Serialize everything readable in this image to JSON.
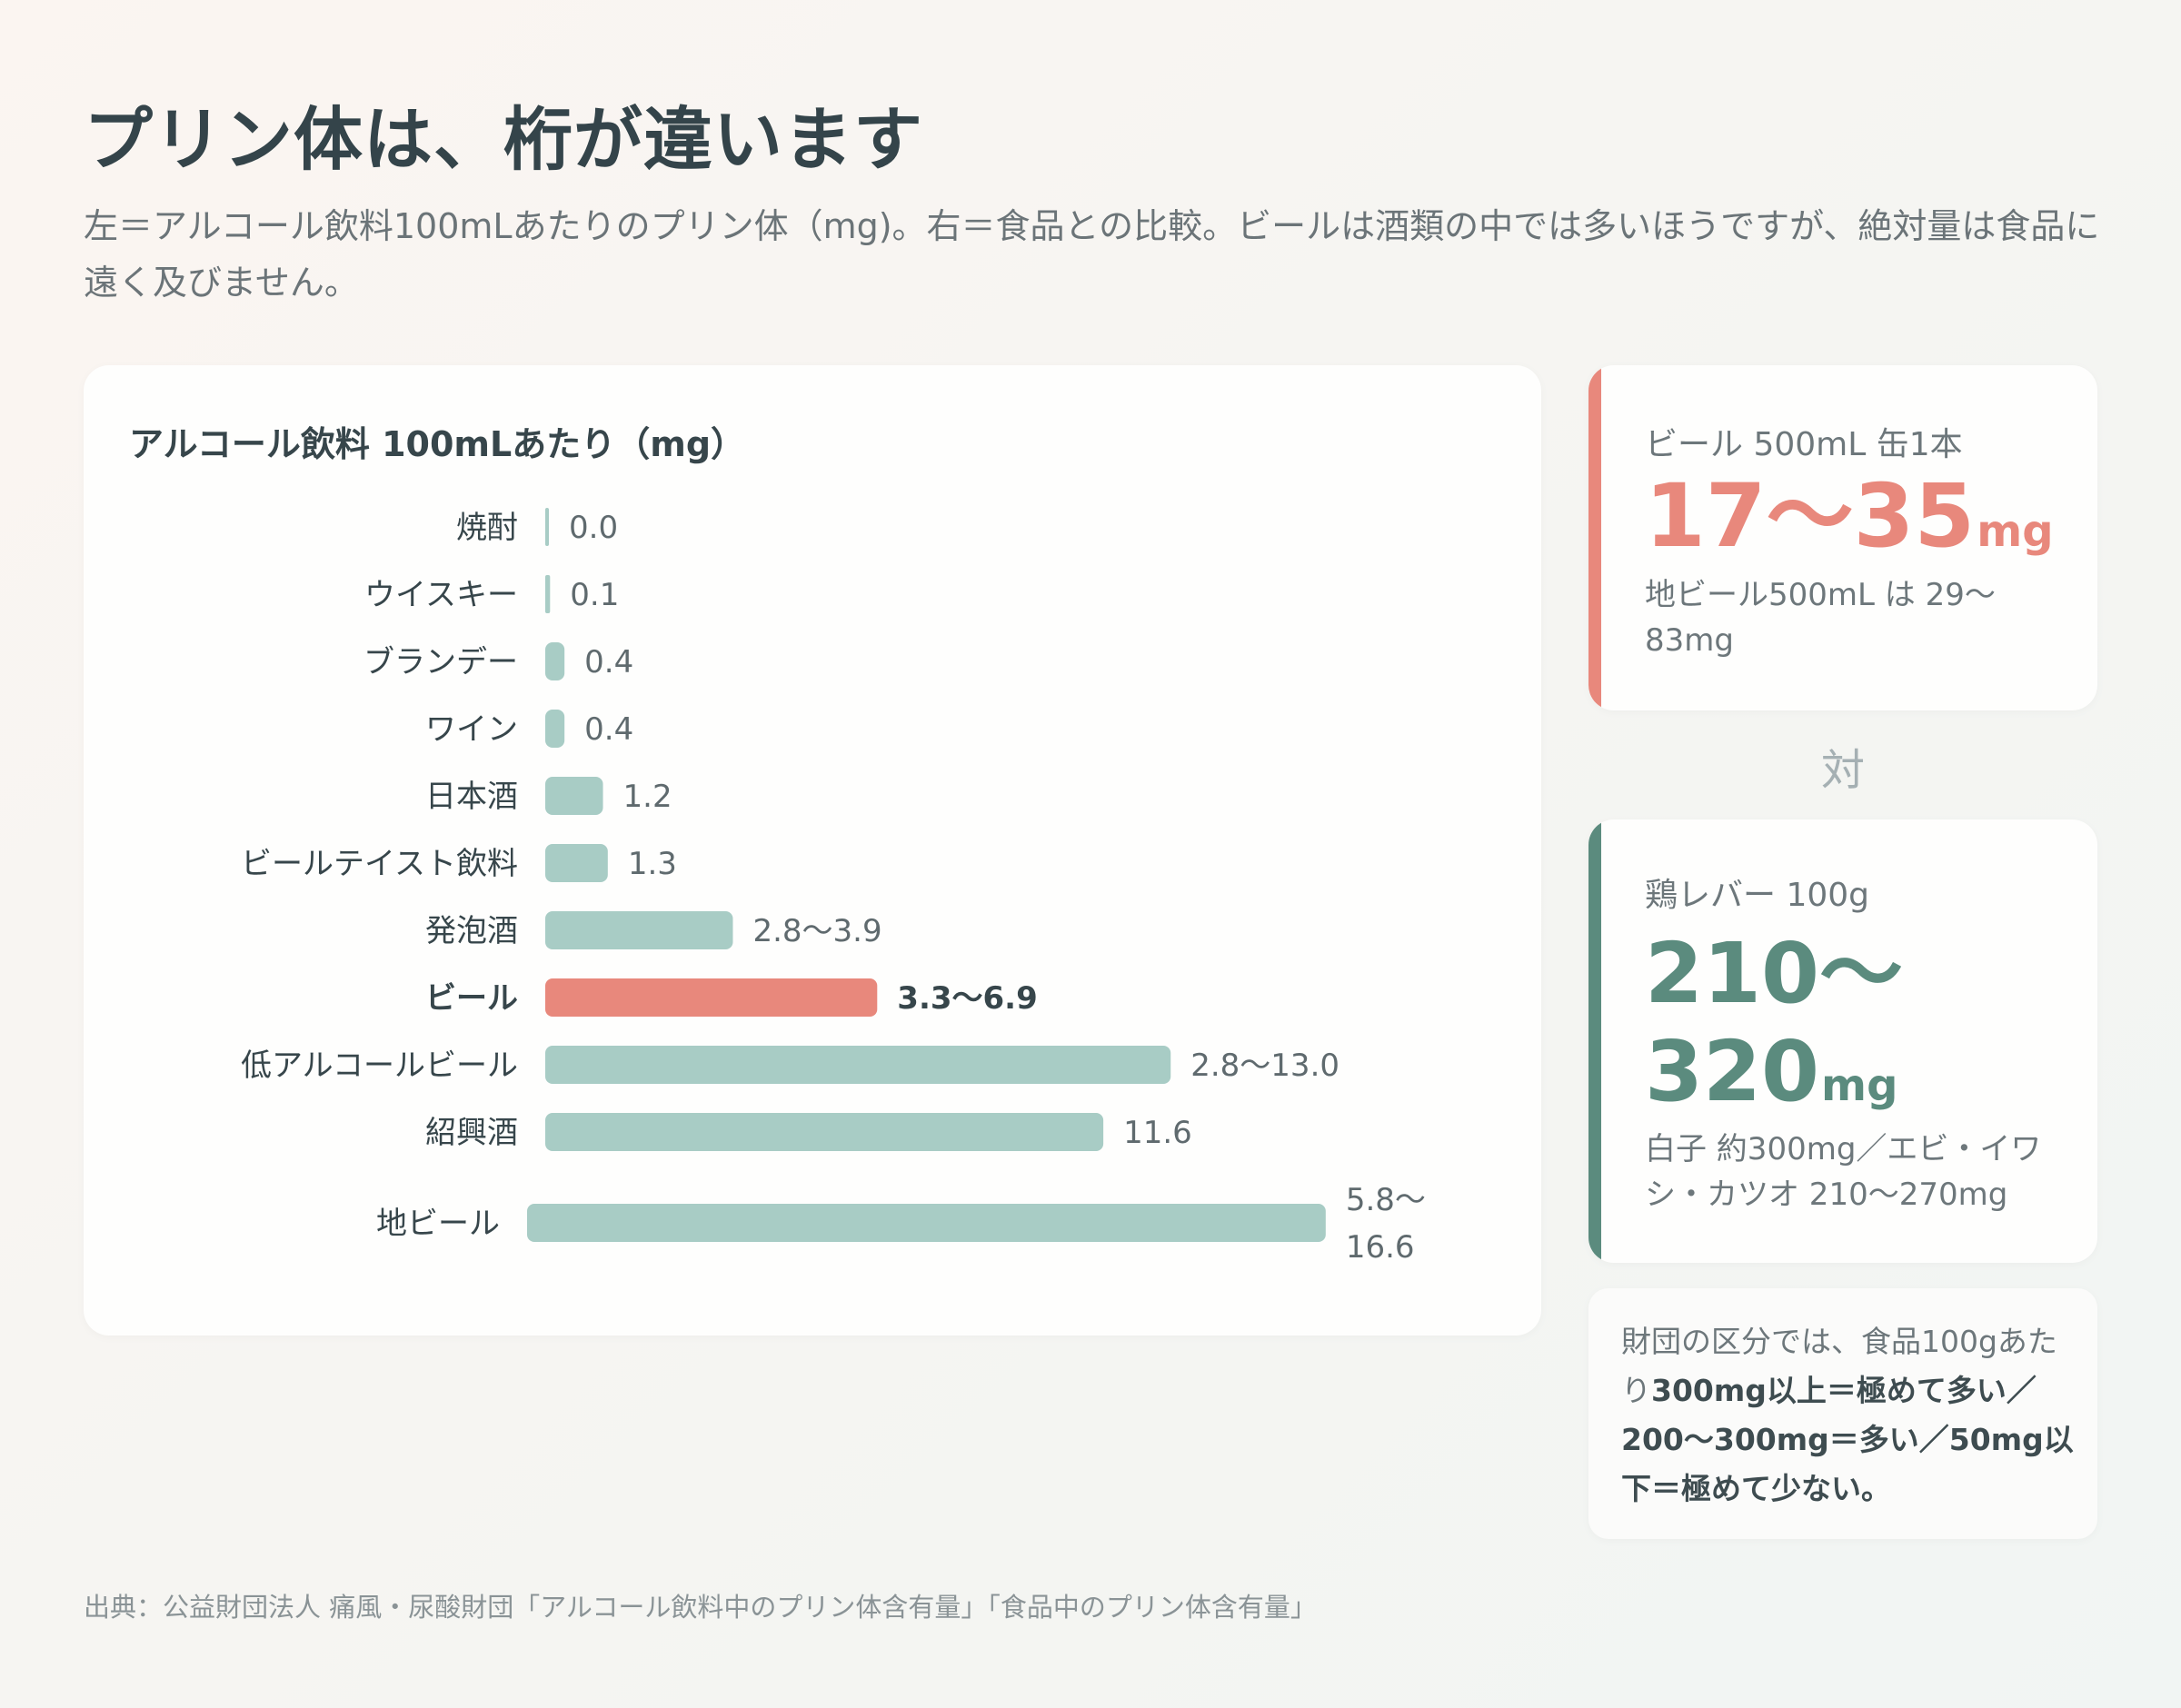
{
  "header": {
    "title": "プリン体は、桁が違います",
    "subtitle": "左＝アルコール飲料100mLあたりのプリン体（mg)。右＝食品との比較。ビールは酒類の中では多いほうですが、絶対量は食品に遠く及びません。"
  },
  "chart_data": {
    "type": "bar",
    "orientation": "horizontal",
    "title": "アルコール飲料 100mLあたり（mg）",
    "xlim": [
      0,
      17
    ],
    "grid": false,
    "categories": [
      "焼酎",
      "ウイスキー",
      "ブランデー",
      "ワイン",
      "日本酒",
      "ビールテイスト飲料",
      "発泡酒",
      "ビール",
      "低アルコールビール",
      "紹興酒",
      "地ビール"
    ],
    "values": [
      0.0,
      0.1,
      0.4,
      0.4,
      1.2,
      1.3,
      3.9,
      6.9,
      13.0,
      11.6,
      16.6
    ],
    "ranges": [
      null,
      null,
      null,
      null,
      null,
      null,
      [
        2.8,
        3.9
      ],
      [
        3.3,
        6.9
      ],
      [
        2.8,
        13.0
      ],
      null,
      [
        5.8,
        16.6
      ]
    ],
    "value_labels": [
      "0.0",
      "0.1",
      "0.4",
      "0.4",
      "1.2",
      "1.3",
      "2.8〜3.9",
      "3.3〜6.9",
      "2.8〜13.0",
      "11.6",
      "5.8〜|16.6"
    ],
    "highlight": "ビール",
    "colors": {
      "default": "#a8ccc5",
      "highlight": "#e8887c"
    }
  },
  "beer": {
    "label": "ビール 500mL 缶1本",
    "value": "17〜35",
    "unit": "mg",
    "note": "地ビール500mL は 29〜83mg",
    "color": "#e8887c"
  },
  "versus": "対",
  "liver": {
    "label": "鶏レバー 100g",
    "value_line1": "210〜",
    "value_line2": "320",
    "unit": "mg",
    "note": "白子 約300mg／エビ・イワシ・カツオ 210〜270mg",
    "color": "#5b8b7e"
  },
  "foundation_note": {
    "lead": "財団の区分では、食品100gあたり",
    "emphasis": "300mg以上＝極めて多い／200〜300mg＝多い／50mg以下＝極めて少ない。"
  },
  "source": "出典：公益財団法人 痛風・尿酸財団「アルコール飲料中のプリン体含有量」「食品中のプリン体含有量」"
}
